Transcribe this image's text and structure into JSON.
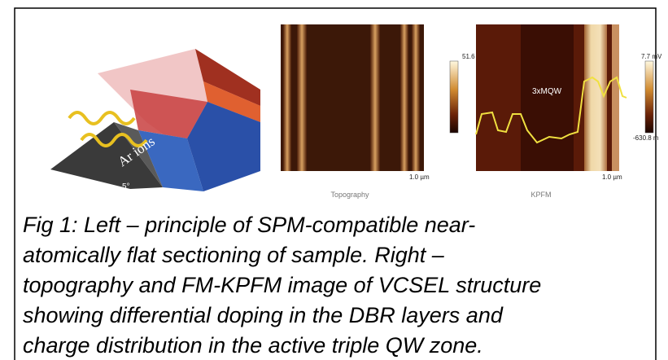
{
  "figure": {
    "schematic": {
      "ion_label": "Ar ions",
      "angle_label": "5°"
    },
    "topography": {
      "scale_max": "51.6 nm",
      "scale_bar": "1.0 µm",
      "label": "Topography"
    },
    "kpfm": {
      "scale_max": "7.7 mV",
      "scale_min": "-630.8 m",
      "annotation": "3xMQW",
      "scale_bar": "1.0 µm",
      "label": "KPFM"
    },
    "caption_lines": [
      "Fig 1: Left – principle of SPM-compatible near-",
      "atomically flat sectioning of sample. Right –",
      "topography and FM-KPFM image of VCSEL structure",
      "showing differential doping in the DBR layers and",
      "charge distribution in the active triple QW zone."
    ]
  }
}
